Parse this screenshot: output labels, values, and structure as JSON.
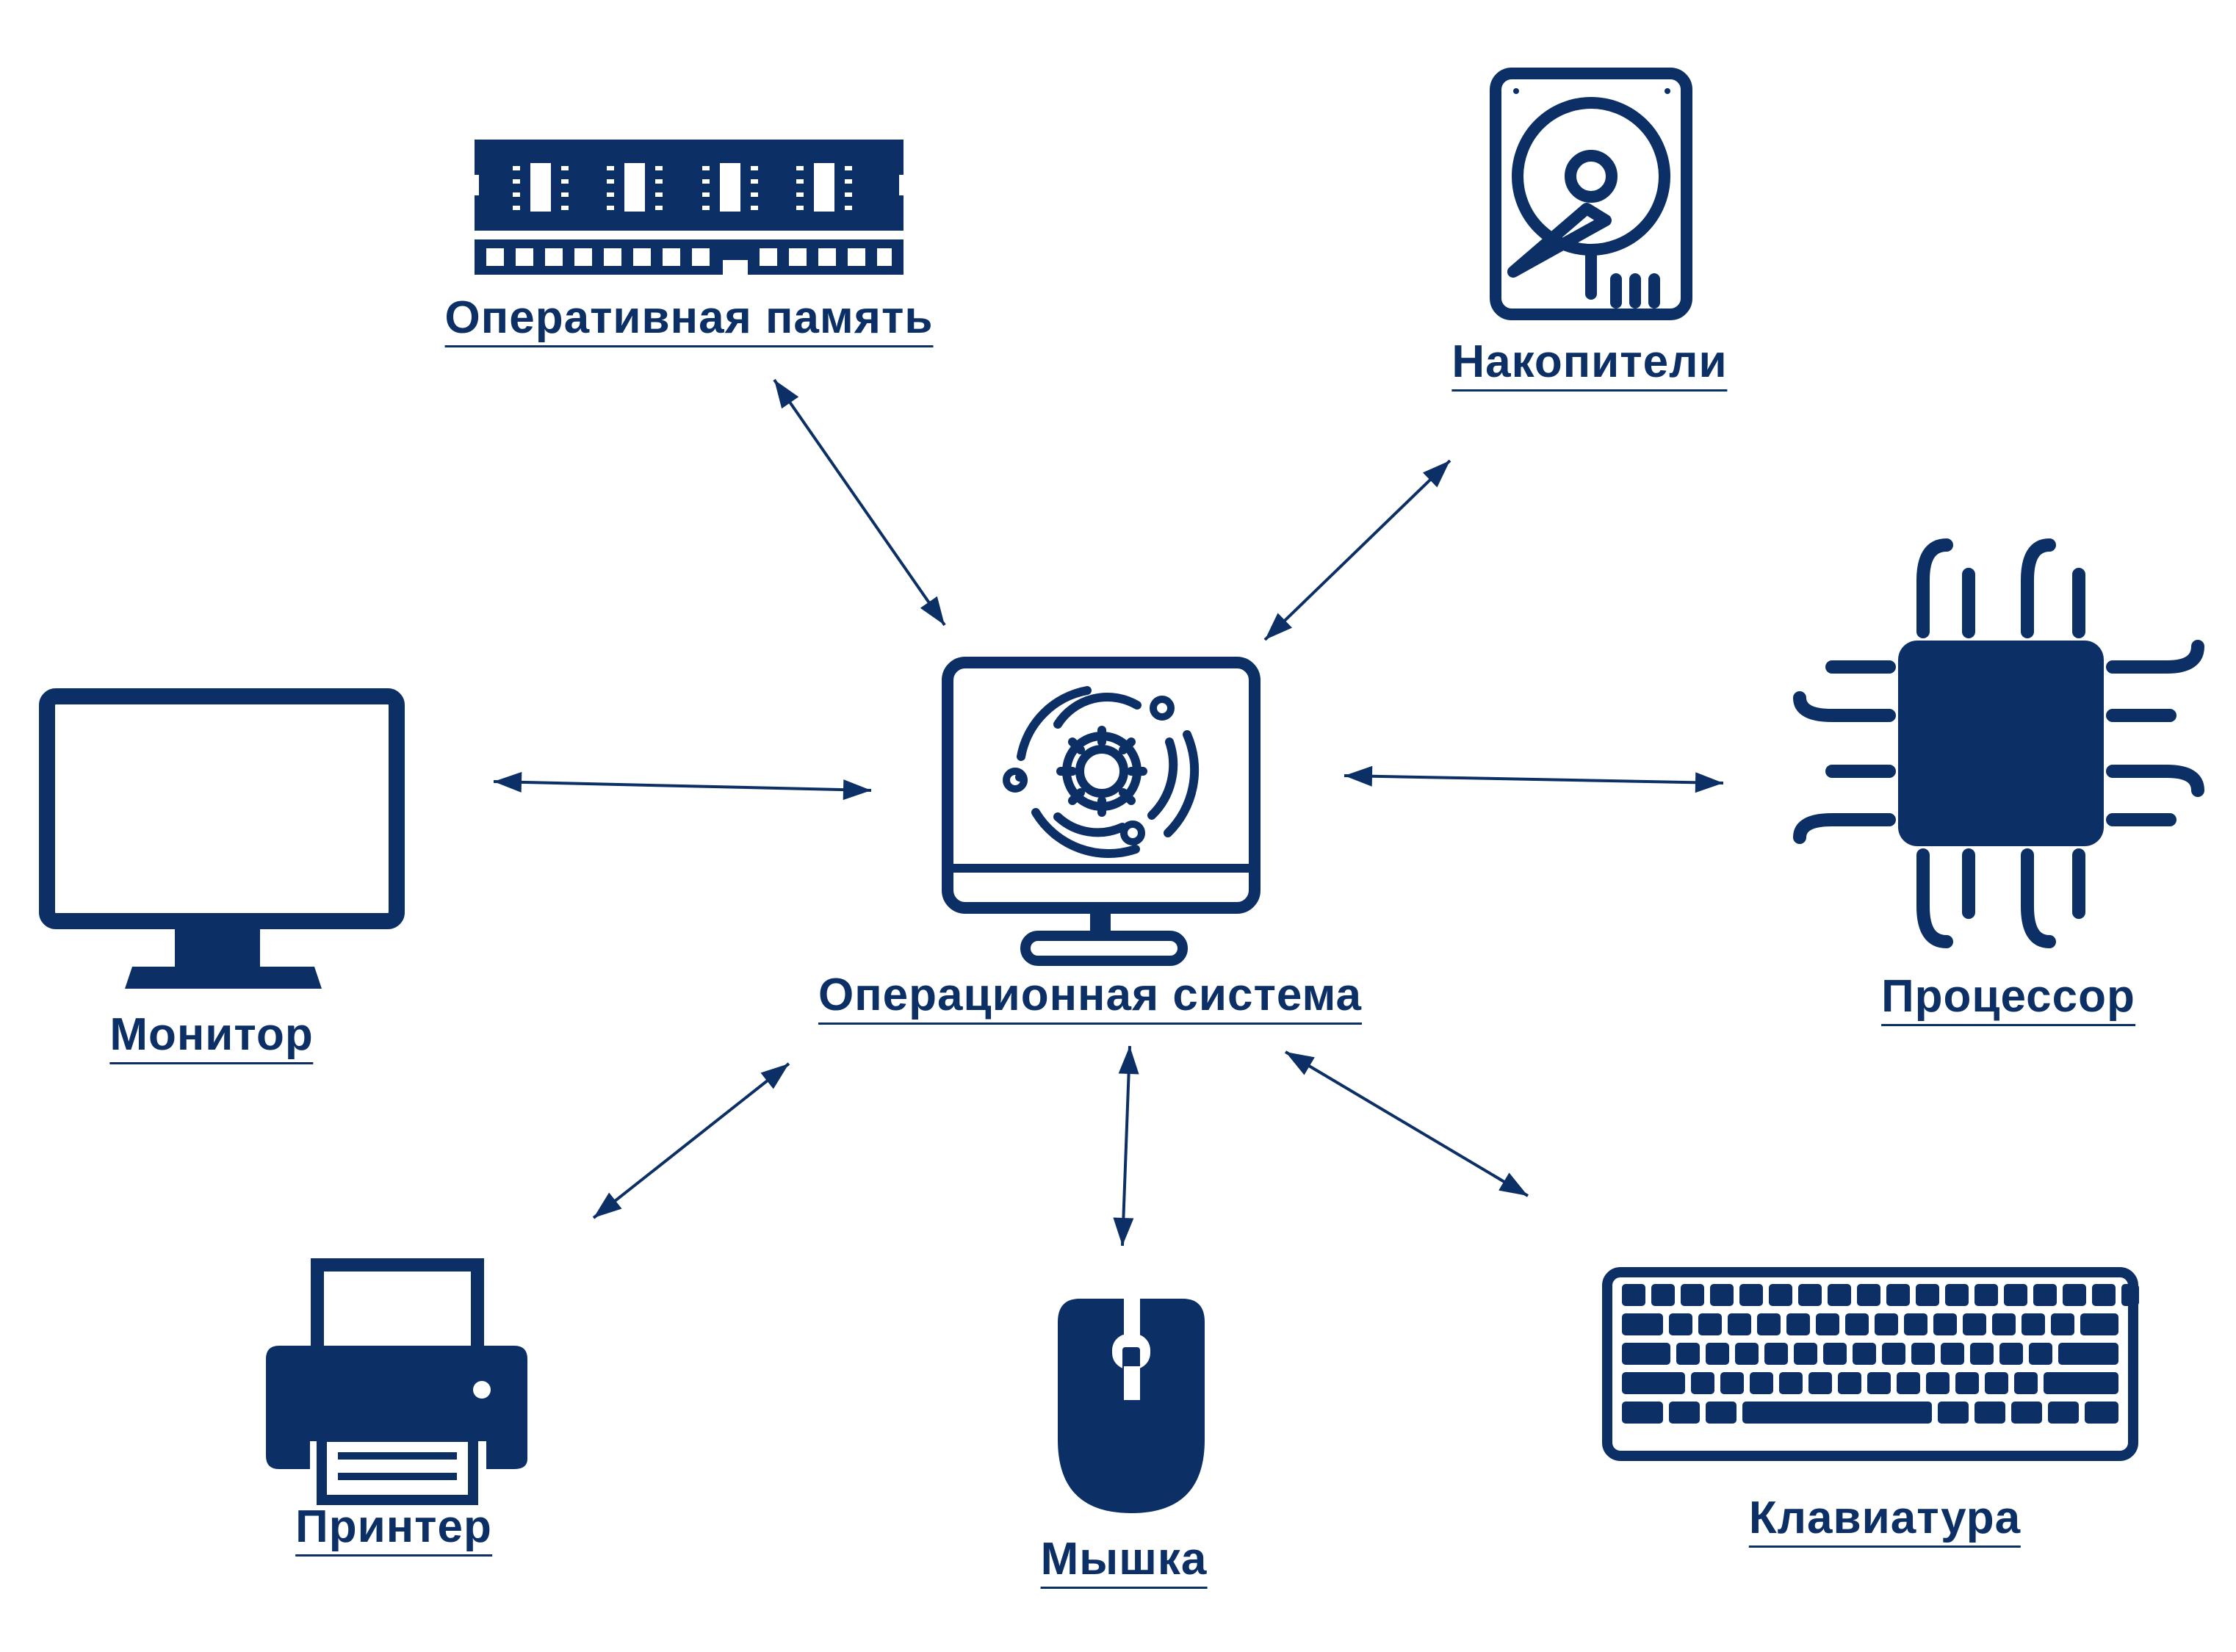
{
  "colors": {
    "primary": "#0c2f66",
    "background": "#ffffff"
  },
  "center": {
    "label": "Операционная система",
    "icon": "os-monitor-gear-icon"
  },
  "nodes": [
    {
      "id": "ram",
      "label": "Оперативная память",
      "icon": "ram-module-icon"
    },
    {
      "id": "storage",
      "label": "Накопители",
      "icon": "hard-drive-icon"
    },
    {
      "id": "cpu",
      "label": "Процессор",
      "icon": "processor-chip-icon"
    },
    {
      "id": "monitor",
      "label": "Монитор",
      "icon": "monitor-icon"
    },
    {
      "id": "printer",
      "label": "Принтер",
      "icon": "printer-icon"
    },
    {
      "id": "mouse",
      "label": "Мышка",
      "icon": "mouse-icon"
    },
    {
      "id": "keyboard",
      "label": "Клавиатура",
      "icon": "keyboard-icon"
    }
  ]
}
